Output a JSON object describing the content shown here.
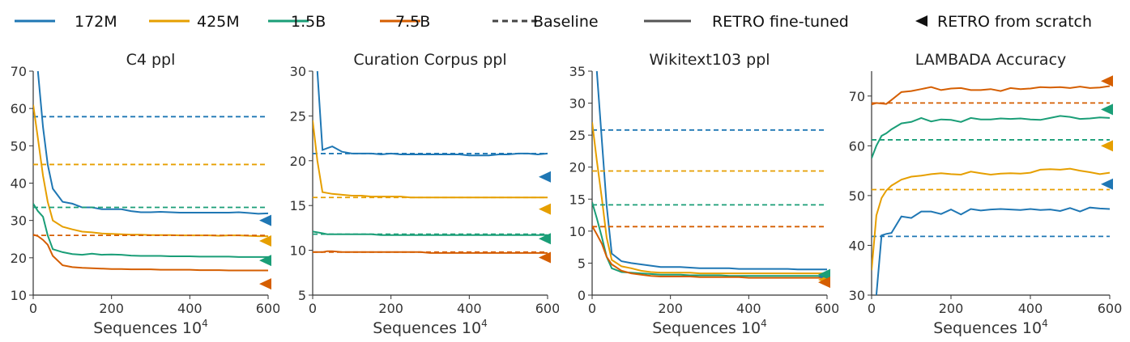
{
  "legend": {
    "items": [
      {
        "label": "172M",
        "kind": "line",
        "color": "#1f77b4"
      },
      {
        "label": "425M",
        "kind": "line",
        "color": "#e69f00"
      },
      {
        "label": "1.5B",
        "kind": "line",
        "color": "#1a9e77"
      },
      {
        "label": "7.5B",
        "kind": "line",
        "color": "#d55e00"
      },
      {
        "label": "Baseline",
        "kind": "dashed",
        "color": "#444444"
      },
      {
        "label": "RETRO fine-tuned",
        "kind": "solid",
        "color": "#555555"
      },
      {
        "label": "RETRO from scratch",
        "kind": "triangle",
        "color": "#111111"
      }
    ]
  },
  "colors": {
    "172M": "#1f77b4",
    "425M": "#e69f00",
    "1.5B": "#1a9e77",
    "7.5B": "#d55e00"
  },
  "chart_data": [
    {
      "type": "line",
      "title": "C4 ppl",
      "xlabel": "Sequences 10",
      "xlabel_sup": "4",
      "xlim": [
        0,
        600
      ],
      "ylim": [
        10,
        70
      ],
      "xticks": [
        0,
        200,
        400,
        600
      ],
      "yticks": [
        10,
        20,
        30,
        40,
        50,
        60,
        70
      ],
      "x": [
        0,
        12,
        25,
        37,
        50,
        75,
        100,
        125,
        150,
        175,
        200,
        225,
        250,
        275,
        300,
        325,
        350,
        375,
        400,
        425,
        450,
        475,
        500,
        525,
        550,
        575,
        600
      ],
      "series": [
        {
          "name": "172M",
          "values": [
            null,
            70,
            55,
            45,
            38.5,
            35,
            34.5,
            33.5,
            33.5,
            33,
            33,
            33,
            32.5,
            32.2,
            32.2,
            32.3,
            32.2,
            32.1,
            32.1,
            32.1,
            32.1,
            32.1,
            32.1,
            32.2,
            32.0,
            31.8,
            31.9
          ],
          "baseline": 57.8,
          "scratch": 30.0
        },
        {
          "name": "425M",
          "values": [
            61,
            52,
            42,
            35,
            30,
            28.3,
            27.6,
            27.0,
            26.8,
            26.5,
            26.4,
            26.3,
            26.2,
            26.2,
            26.1,
            26.1,
            26.1,
            26.0,
            26.0,
            26.0,
            26.0,
            25.9,
            26.0,
            26.0,
            25.9,
            25.8,
            25.8
          ],
          "baseline": 45.0,
          "scratch": 24.5
        },
        {
          "name": "1.5B",
          "values": [
            34.5,
            32.5,
            31,
            26,
            22.3,
            21.5,
            21.0,
            20.8,
            21.1,
            20.8,
            20.9,
            20.8,
            20.6,
            20.5,
            20.5,
            20.5,
            20.4,
            20.4,
            20.4,
            20.3,
            20.3,
            20.3,
            20.3,
            20.2,
            20.2,
            20.2,
            20.2
          ],
          "baseline": 33.5,
          "scratch": 19.3
        },
        {
          "name": "7.5B",
          "values": [
            26.2,
            25.8,
            24.8,
            23.5,
            20.5,
            18.0,
            17.5,
            17.3,
            17.2,
            17.1,
            17.0,
            17.0,
            16.9,
            16.9,
            16.9,
            16.8,
            16.8,
            16.8,
            16.8,
            16.7,
            16.7,
            16.7,
            16.6,
            16.6,
            16.6,
            16.6,
            16.6
          ],
          "baseline": 26.0,
          "scratch": 13.0
        }
      ]
    },
    {
      "type": "line",
      "title": "Curation Corpus ppl",
      "xlabel": "Sequences 10",
      "xlabel_sup": "4",
      "xlim": [
        0,
        600
      ],
      "ylim": [
        5,
        30
      ],
      "xticks": [
        0,
        200,
        400,
        600
      ],
      "yticks": [
        5,
        10,
        15,
        20,
        25,
        30
      ],
      "x": [
        0,
        12,
        25,
        37,
        50,
        75,
        100,
        125,
        150,
        175,
        200,
        225,
        250,
        275,
        300,
        325,
        350,
        375,
        400,
        425,
        450,
        475,
        500,
        525,
        550,
        575,
        600
      ],
      "series": [
        {
          "name": "172M",
          "values": [
            null,
            30,
            21.2,
            21.4,
            21.6,
            21.0,
            20.8,
            20.8,
            20.8,
            20.7,
            20.8,
            20.7,
            20.7,
            20.7,
            20.7,
            20.7,
            20.7,
            20.7,
            20.6,
            20.6,
            20.6,
            20.7,
            20.7,
            20.8,
            20.8,
            20.7,
            20.8
          ],
          "baseline": 20.8,
          "scratch": 18.2
        },
        {
          "name": "425M",
          "values": [
            24.5,
            20,
            16.5,
            16.4,
            16.3,
            16.2,
            16.1,
            16.1,
            16.0,
            16.0,
            16.0,
            16.0,
            15.9,
            15.9,
            15.9,
            15.9,
            15.9,
            15.9,
            15.9,
            15.9,
            15.9,
            15.9,
            15.9,
            15.9,
            15.9,
            15.9,
            15.9
          ],
          "baseline": 15.9,
          "scratch": 14.6
        },
        {
          "name": "1.5B",
          "values": [
            12.1,
            12.0,
            11.9,
            11.8,
            11.8,
            11.8,
            11.8,
            11.8,
            11.8,
            11.7,
            11.7,
            11.7,
            11.7,
            11.7,
            11.7,
            11.7,
            11.7,
            11.7,
            11.7,
            11.7,
            11.7,
            11.7,
            11.7,
            11.7,
            11.7,
            11.7,
            11.7
          ],
          "baseline": 11.8,
          "scratch": 11.3
        },
        {
          "name": "7.5B",
          "values": [
            9.8,
            9.8,
            9.8,
            9.9,
            9.9,
            9.8,
            9.8,
            9.8,
            9.8,
            9.8,
            9.8,
            9.8,
            9.8,
            9.8,
            9.7,
            9.7,
            9.7,
            9.7,
            9.7,
            9.7,
            9.7,
            9.7,
            9.7,
            9.7,
            9.7,
            9.7,
            9.7
          ],
          "baseline": 9.8,
          "scratch": 9.2
        }
      ]
    },
    {
      "type": "line",
      "title": "Wikitext103 ppl",
      "xlabel": "Sequences 10",
      "xlabel_sup": "4",
      "xlim": [
        0,
        600
      ],
      "ylim": [
        0,
        35
      ],
      "xticks": [
        0,
        200,
        400,
        600
      ],
      "yticks": [
        0,
        5,
        10,
        15,
        20,
        25,
        30,
        35
      ],
      "x": [
        0,
        12,
        25,
        37,
        50,
        75,
        100,
        125,
        150,
        175,
        200,
        225,
        250,
        275,
        300,
        325,
        350,
        375,
        400,
        425,
        450,
        475,
        500,
        525,
        550,
        575,
        600
      ],
      "series": [
        {
          "name": "172M",
          "values": [
            null,
            35,
            24,
            14,
            6.5,
            5.3,
            5.0,
            4.8,
            4.6,
            4.4,
            4.4,
            4.4,
            4.3,
            4.2,
            4.2,
            4.2,
            4.2,
            4.1,
            4.1,
            4.1,
            4.1,
            4.1,
            4.1,
            4.0,
            4.0,
            4.0,
            4.0
          ],
          "baseline": 25.8,
          "scratch": 2.9
        },
        {
          "name": "425M",
          "values": [
            27,
            21,
            15,
            9,
            5.5,
            4.5,
            4.2,
            3.8,
            3.6,
            3.5,
            3.5,
            3.5,
            3.5,
            3.4,
            3.4,
            3.4,
            3.4,
            3.4,
            3.4,
            3.4,
            3.4,
            3.4,
            3.4,
            3.4,
            3.4,
            3.4,
            3.4
          ],
          "baseline": 19.4,
          "scratch": 2.4
        },
        {
          "name": "1.5B",
          "values": [
            14.5,
            12,
            9,
            6,
            4.2,
            3.6,
            3.5,
            3.4,
            3.3,
            3.2,
            3.2,
            3.2,
            3.1,
            3.1,
            3.1,
            3.1,
            3.0,
            3.0,
            3.0,
            3.0,
            3.0,
            3.0,
            3.0,
            3.0,
            3.0,
            3.0,
            3.0
          ],
          "baseline": 14.1,
          "scratch": 3.2
        },
        {
          "name": "7.5B",
          "values": [
            10.8,
            9.5,
            8,
            6,
            4.8,
            3.8,
            3.4,
            3.2,
            3.0,
            2.9,
            2.9,
            2.9,
            2.9,
            2.8,
            2.8,
            2.8,
            2.8,
            2.8,
            2.7,
            2.7,
            2.7,
            2.7,
            2.7,
            2.7,
            2.7,
            2.7,
            2.7
          ],
          "baseline": 10.7,
          "scratch": 2.0
        }
      ]
    },
    {
      "type": "line",
      "title": "LAMBADA Accuracy",
      "xlabel": "Sequences 10",
      "xlabel_sup": "4",
      "xlim": [
        0,
        600
      ],
      "ylim": [
        30,
        75
      ],
      "xticks": [
        0,
        200,
        400,
        600
      ],
      "yticks": [
        30,
        40,
        50,
        60,
        70
      ],
      "x": [
        0,
        12,
        25,
        37,
        50,
        75,
        100,
        125,
        150,
        175,
        200,
        225,
        250,
        275,
        300,
        325,
        350,
        375,
        400,
        425,
        450,
        475,
        500,
        525,
        550,
        575,
        600
      ],
      "series": [
        {
          "name": "172M",
          "values": [
            null,
            30,
            42,
            42.3,
            42.5,
            45.8,
            45.5,
            46.8,
            46.8,
            46.3,
            47.2,
            46.2,
            47.3,
            47.0,
            47.2,
            47.3,
            47.2,
            47.1,
            47.3,
            47.1,
            47.2,
            46.9,
            47.5,
            46.8,
            47.6,
            47.4,
            47.3
          ],
          "baseline": 41.8,
          "scratch": 52.3
        },
        {
          "name": "425M",
          "values": [
            35,
            46,
            49.5,
            51,
            52,
            53.2,
            53.8,
            54.0,
            54.3,
            54.5,
            54.3,
            54.2,
            54.8,
            54.5,
            54.2,
            54.4,
            54.5,
            54.4,
            54.6,
            55.2,
            55.3,
            55.2,
            55.4,
            55.0,
            54.7,
            54.3,
            54.6
          ],
          "baseline": 51.2,
          "scratch": 60.0
        },
        {
          "name": "1.5B",
          "values": [
            57.5,
            60,
            62,
            62.5,
            63.3,
            64.5,
            64.8,
            65.6,
            64.9,
            65.3,
            65.2,
            64.8,
            65.6,
            65.3,
            65.3,
            65.5,
            65.4,
            65.5,
            65.3,
            65.2,
            65.6,
            66.0,
            65.8,
            65.4,
            65.5,
            65.7,
            65.6
          ],
          "baseline": 61.2,
          "scratch": 67.3
        },
        {
          "name": "7.5B",
          "values": [
            68.3,
            68.6,
            68.5,
            68.4,
            69.2,
            70.8,
            71.0,
            71.4,
            71.8,
            71.2,
            71.5,
            71.6,
            71.2,
            71.2,
            71.4,
            71.0,
            71.6,
            71.4,
            71.5,
            71.8,
            71.7,
            71.8,
            71.6,
            71.9,
            71.6,
            71.7,
            72.0
          ],
          "baseline": 68.6,
          "scratch": 73.0
        }
      ]
    }
  ]
}
